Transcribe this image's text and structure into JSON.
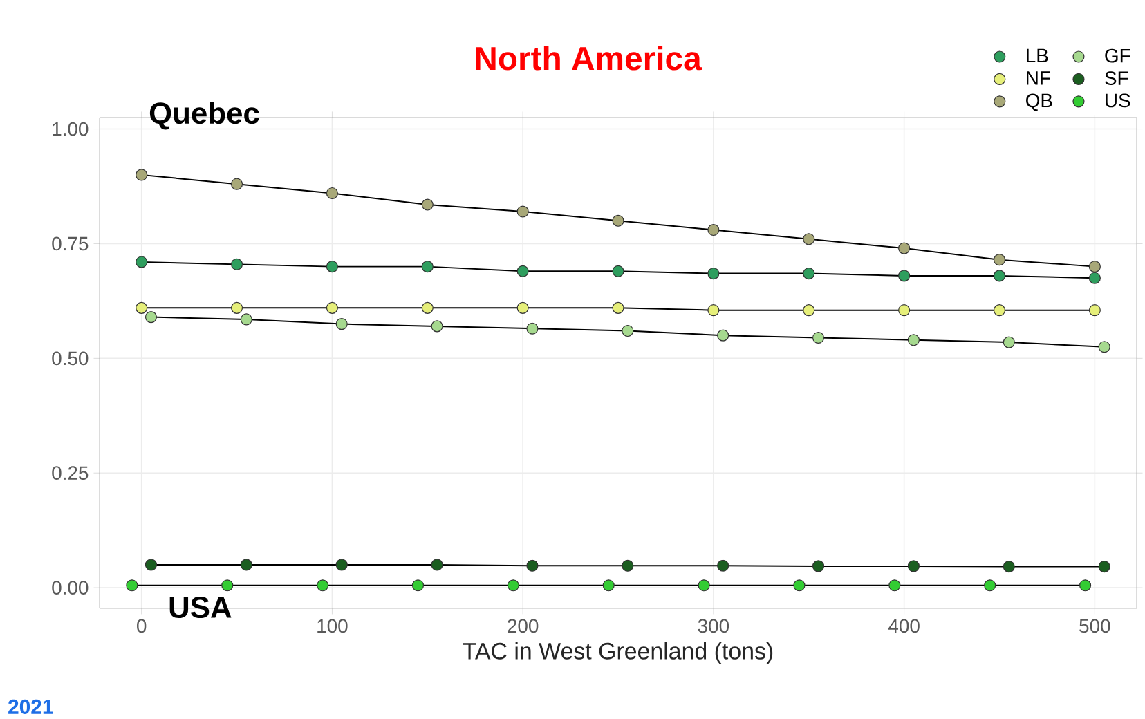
{
  "chart_data": {
    "type": "line",
    "title": "North America",
    "xlabel": "TAC in West Greenland (tons)",
    "xlim": [
      -22,
      522
    ],
    "ylim": [
      -0.045,
      1.025
    ],
    "xticks": [
      0,
      100,
      200,
      300,
      400,
      500
    ],
    "yticks": [
      {
        "value": 0,
        "label": "0.00"
      },
      {
        "value": 0.25,
        "label": "0.25"
      },
      {
        "value": 0.5,
        "label": "0.50"
      },
      {
        "value": 0.75,
        "label": "0.75"
      },
      {
        "value": 1,
        "label": "1.00"
      }
    ],
    "grid": true,
    "legend": "top right",
    "marker": "circle",
    "line_style": "solid",
    "series": [
      {
        "name": "LB",
        "color": "#2e9e5e",
        "x": [
          0,
          50,
          100,
          150,
          200,
          250,
          300,
          350,
          400,
          450,
          500
        ],
        "values": [
          0.71,
          0.705,
          0.7,
          0.7,
          0.69,
          0.69,
          0.685,
          0.685,
          0.68,
          0.68,
          0.675
        ]
      },
      {
        "name": "GF",
        "color": "#a6d98f",
        "x": [
          5,
          55,
          105,
          155,
          205,
          255,
          305,
          355,
          405,
          455,
          505
        ],
        "values": [
          0.59,
          0.585,
          0.575,
          0.57,
          0.565,
          0.56,
          0.55,
          0.545,
          0.54,
          0.535,
          0.525
        ]
      },
      {
        "name": "NF",
        "color": "#e6ef7a",
        "x": [
          0,
          50,
          100,
          150,
          200,
          250,
          300,
          350,
          400,
          450,
          500
        ],
        "values": [
          0.61,
          0.61,
          0.61,
          0.61,
          0.61,
          0.61,
          0.605,
          0.605,
          0.605,
          0.605,
          0.605
        ]
      },
      {
        "name": "SF",
        "color": "#1b5e20",
        "x": [
          5,
          55,
          105,
          155,
          205,
          255,
          305,
          355,
          405,
          455,
          505
        ],
        "values": [
          0.05,
          0.05,
          0.05,
          0.05,
          0.048,
          0.048,
          0.048,
          0.047,
          0.047,
          0.046,
          0.046
        ]
      },
      {
        "name": "QB",
        "color": "#a8a878",
        "x": [
          0,
          50,
          100,
          150,
          200,
          250,
          300,
          350,
          400,
          450,
          500
        ],
        "values": [
          0.9,
          0.88,
          0.86,
          0.835,
          0.82,
          0.8,
          0.78,
          0.76,
          0.74,
          0.715,
          0.7
        ]
      },
      {
        "name": "US",
        "color": "#33cc33",
        "x": [
          -5,
          45,
          95,
          145,
          195,
          245,
          295,
          345,
          395,
          445,
          495
        ],
        "values": [
          0.005,
          0.005,
          0.005,
          0.005,
          0.005,
          0.005,
          0.005,
          0.005,
          0.005,
          0.005,
          0.005
        ]
      }
    ],
    "annotations": [
      "Quebec",
      "USA",
      "2021"
    ]
  }
}
